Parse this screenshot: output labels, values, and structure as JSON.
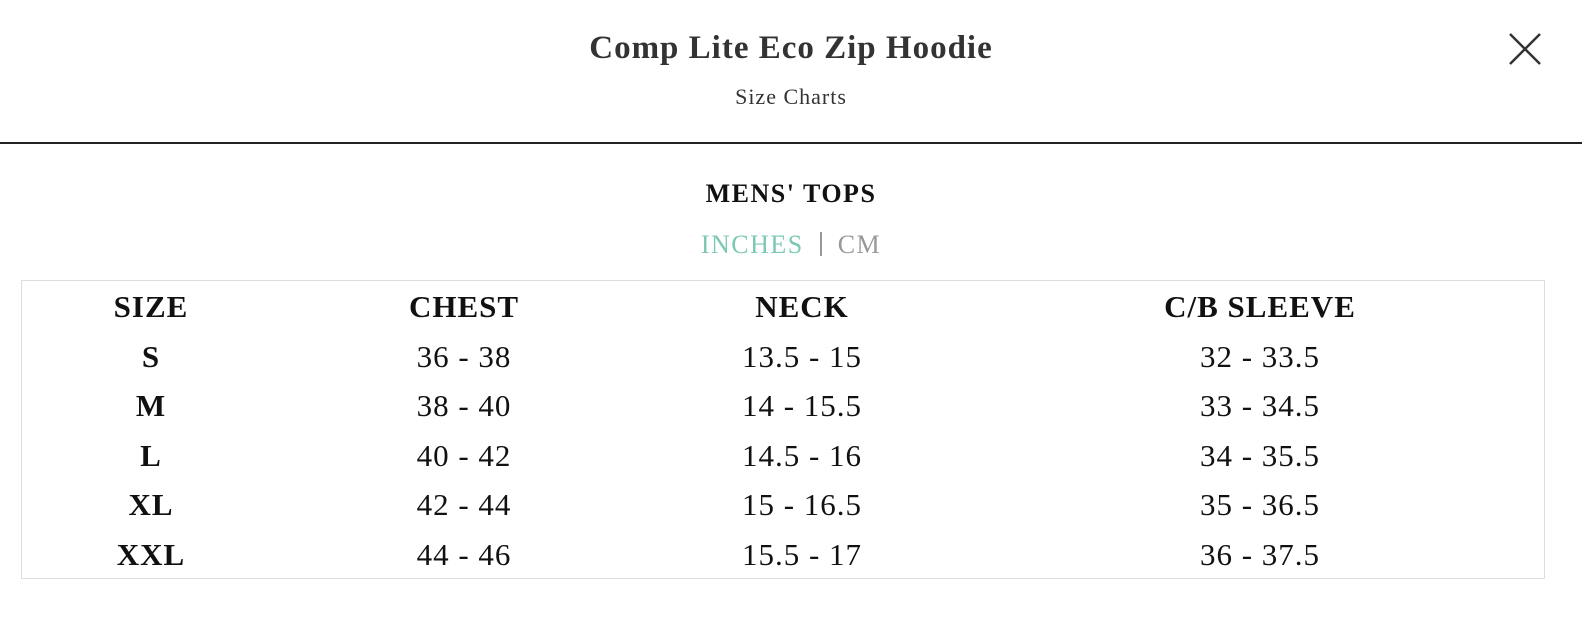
{
  "header": {
    "title": "Comp Lite Eco Zip Hoodie",
    "subtitle": "Size Charts"
  },
  "section": {
    "title": "MENS' TOPS"
  },
  "units": {
    "options": [
      "INCHES",
      "CM"
    ],
    "active": 0
  },
  "table": {
    "columns": [
      "SIZE",
      "CHEST",
      "NECK",
      "C/B SLEEVE"
    ],
    "rows": [
      [
        "S",
        "36 - 38",
        "13.5 - 15",
        "32 - 33.5"
      ],
      [
        "M",
        "38 - 40",
        "14 - 15.5",
        "33 - 34.5"
      ],
      [
        "L",
        "40 - 42",
        "14.5 - 16",
        "34 - 35.5"
      ],
      [
        "XL",
        "42 - 44",
        "15 - 16.5",
        "35 - 36.5"
      ],
      [
        "XXL",
        "44 - 46",
        "15.5 - 17",
        "36 - 37.5"
      ]
    ]
  }
}
